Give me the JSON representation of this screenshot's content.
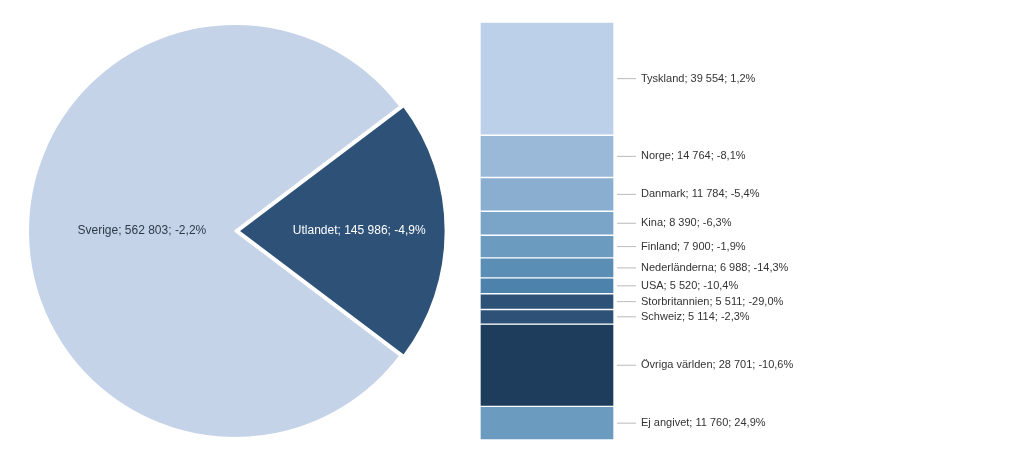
{
  "chart_data": [
    {
      "type": "pie",
      "categories": [
        "Sverige; 562 803; -2,2%",
        "Utlandet; 145 986; -4,9%"
      ],
      "values": [
        562803,
        145986
      ],
      "colors": [
        "#c5d3e8",
        "#2d5177"
      ]
    },
    {
      "type": "bar",
      "stacked": true,
      "categories": [
        null
      ],
      "series": [
        {
          "name": "Tyskland; 39 554; 1,2%",
          "color": "#bdd0e9",
          "values": [
            39554
          ]
        },
        {
          "name": "Norge; 14 764; -8,1%",
          "color": "#9ab8d8",
          "values": [
            14764
          ]
        },
        {
          "name": "Danmark; 11 784; -5,4%",
          "color": "#8aaecf",
          "values": [
            11784
          ]
        },
        {
          "name": "Kina; 8 390; -6,3%",
          "color": "#7aa5c8",
          "values": [
            8390
          ]
        },
        {
          "name": "Finland; 7 900; -1,9%",
          "color": "#6b9bbf",
          "values": [
            7900
          ]
        },
        {
          "name": "Nederländerna; 6 988; -14,3%",
          "color": "#5a8eb5",
          "values": [
            6988
          ]
        },
        {
          "name": "USA; 5 520; -10,4%",
          "color": "#4d82ac",
          "values": [
            5520
          ]
        },
        {
          "name": "Storbritannien; 5 511; -29,0%",
          "color": "#2d5177",
          "values": [
            5511
          ]
        },
        {
          "name": "Schweiz; 5 114; -2,3%",
          "color": "#2d5177",
          "values": [
            5114
          ]
        },
        {
          "name": "Övriga världen; 28 701; -10,6%",
          "color": "#1e3d5c",
          "values": [
            28701
          ]
        },
        {
          "name": "Ej angivet; 11 760; 24,9%",
          "color": "#6b9bbf",
          "values": [
            11760
          ]
        }
      ],
      "ylim": [
        0,
        145986
      ],
      "tick_labels": false
    }
  ]
}
